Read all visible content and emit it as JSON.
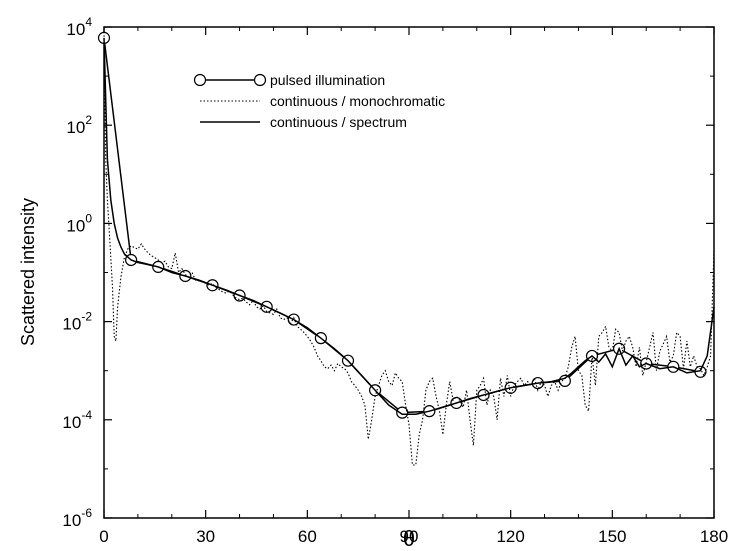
{
  "chart_data": {
    "type": "line",
    "title": "",
    "xlabel": "θ",
    "ylabel": "Scattered intensity",
    "xlim": [
      0,
      180
    ],
    "ylim": [
      1e-06,
      10000.0
    ],
    "yscale": "log",
    "x_ticks": [
      {
        "value": 0,
        "label": "0"
      },
      {
        "value": 30,
        "label": "30"
      },
      {
        "value": 60,
        "label": "60"
      },
      {
        "value": 90,
        "label": "90"
      },
      {
        "value": 120,
        "label": "120"
      },
      {
        "value": 150,
        "label": "150"
      },
      {
        "value": 180,
        "label": "180"
      }
    ],
    "y_ticks": [
      {
        "value": 1e-06,
        "base": "10",
        "exp": "-6"
      },
      {
        "value": 0.0001,
        "base": "10",
        "exp": "-4"
      },
      {
        "value": 0.01,
        "base": "10",
        "exp": "-2"
      },
      {
        "value": 1,
        "base": "10",
        "exp": "0"
      },
      {
        "value": 100,
        "base": "10",
        "exp": "2"
      },
      {
        "value": 10000,
        "base": "10",
        "exp": "4"
      }
    ],
    "grid": false,
    "legend_position": "top-center",
    "series": [
      {
        "name": "pulsed illumination",
        "style": "solid-with-circles",
        "color": "#000000",
        "x": [
          0,
          8,
          16,
          24,
          32,
          40,
          48,
          56,
          64,
          72,
          80,
          88,
          96,
          104,
          112,
          120,
          128,
          136,
          144,
          152,
          160,
          168,
          176
        ],
        "y": [
          6000,
          0.18,
          0.13,
          0.085,
          0.055,
          0.034,
          0.02,
          0.011,
          0.0046,
          0.0016,
          0.0004,
          0.00014,
          0.00015,
          0.00022,
          0.00032,
          0.00045,
          0.00056,
          0.00062,
          0.002,
          0.0028,
          0.0014,
          0.0012,
          0.00095
        ]
      },
      {
        "name": "continuous / monochromatic",
        "style": "dotted",
        "color": "#000000",
        "x": [
          0,
          0.5,
          1,
          1.5,
          2,
          2.5,
          3,
          3.5,
          4,
          5,
          6,
          7,
          8,
          9,
          10,
          11,
          12,
          13,
          14,
          15,
          16,
          17,
          18,
          19,
          20,
          21,
          22,
          23,
          24,
          25,
          26,
          27,
          28,
          29,
          30,
          31,
          32,
          33,
          34,
          35,
          36,
          37,
          38,
          39,
          40,
          41,
          42,
          43,
          44,
          45,
          46,
          47,
          48,
          49,
          50,
          51,
          52,
          53,
          54,
          55,
          56,
          57,
          58,
          59,
          60,
          61,
          62,
          63,
          64,
          65,
          66,
          67,
          68,
          69,
          70,
          71,
          72,
          73,
          74,
          75,
          76,
          77,
          78,
          79,
          80,
          81,
          82,
          83,
          84,
          85,
          86,
          87,
          88,
          89,
          90,
          91,
          92,
          93,
          94,
          95,
          96,
          97,
          98,
          99,
          100,
          101,
          102,
          103,
          104,
          105,
          106,
          107,
          108,
          109,
          110,
          111,
          112,
          113,
          114,
          115,
          116,
          117,
          118,
          119,
          120,
          121,
          122,
          123,
          124,
          125,
          126,
          127,
          128,
          129,
          130,
          131,
          132,
          133,
          134,
          135,
          136,
          137,
          138,
          139,
          140,
          141,
          142,
          143,
          144,
          145,
          146,
          147,
          148,
          149,
          150,
          151,
          152,
          153,
          154,
          155,
          156,
          157,
          158,
          159,
          160,
          161,
          162,
          163,
          164,
          165,
          166,
          167,
          168,
          169,
          170,
          171,
          172,
          173,
          174,
          175,
          176,
          177,
          178,
          179,
          180
        ],
        "y": [
          8000,
          20,
          3,
          0.8,
          0.2,
          0.05,
          0.005,
          0.004,
          0.02,
          0.08,
          0.2,
          0.3,
          0.35,
          0.32,
          0.3,
          0.38,
          0.3,
          0.25,
          0.22,
          0.2,
          0.18,
          0.16,
          0.17,
          0.13,
          0.12,
          0.25,
          0.1,
          0.12,
          0.09,
          0.08,
          0.1,
          0.07,
          0.068,
          0.065,
          0.06,
          0.055,
          0.06,
          0.05,
          0.045,
          0.04,
          0.038,
          0.042,
          0.035,
          0.03,
          0.028,
          0.03,
          0.025,
          0.022,
          0.027,
          0.02,
          0.018,
          0.021,
          0.016,
          0.015,
          0.014,
          0.018,
          0.012,
          0.011,
          0.012,
          0.009,
          0.012,
          0.008,
          0.007,
          0.006,
          0.005,
          0.004,
          0.003,
          0.002,
          0.0016,
          0.0012,
          0.0011,
          0.0013,
          0.001,
          0.0014,
          0.0012,
          0.0011,
          0.0009,
          0.0006,
          0.0005,
          0.0004,
          0.0003,
          0.0002,
          4e-05,
          0.0001,
          0.0003,
          0.0005,
          0.0008,
          0.001,
          0.0006,
          0.0005,
          0.0009,
          0.0007,
          0.0006,
          0.0002,
          8e-05,
          1.2e-05,
          1.2e-05,
          5e-05,
          0.0001,
          0.0004,
          0.0006,
          0.0007,
          0.0003,
          0.00015,
          5e-05,
          0.0002,
          0.0006,
          0.00025,
          0.0003,
          0.00025,
          0.00018,
          0.0004,
          0.0001,
          3e-05,
          0.0004,
          0.0005,
          0.0007,
          0.0002,
          0.0004,
          0.0003,
          0.0001,
          0.0007,
          0.0003,
          0.0008,
          0.0003,
          0.0005,
          0.0006,
          0.0007,
          0.0005,
          0.0006,
          0.0005,
          0.0007,
          0.0004,
          0.0006,
          0.0005,
          0.0003,
          0.0005,
          0.0006,
          0.0004,
          0.0006,
          0.0007,
          0.0012,
          0.003,
          0.005,
          0.001,
          0.0008,
          0.0002,
          0.00015,
          0.002,
          0.0005,
          0.005,
          0.006,
          0.008,
          0.003,
          0.0025,
          0.007,
          0.006,
          0.0025,
          0.004,
          0.005,
          0.003,
          0.0012,
          0.003,
          0.0008,
          0.0015,
          0.003,
          0.006,
          0.001,
          0.0025,
          0.0035,
          0.005,
          0.0015,
          0.002,
          0.006,
          0.005,
          0.0011,
          0.004,
          0.0012,
          0.002,
          0.0012,
          0.0011,
          0.0008,
          0.0012,
          0.002,
          0.3
        ]
      },
      {
        "name": "continuous / spectrum",
        "style": "solid",
        "color": "#000000",
        "x": [
          0,
          1,
          2,
          3,
          4,
          5,
          6,
          8,
          10,
          12,
          16,
          20,
          24,
          28,
          32,
          36,
          40,
          44,
          48,
          52,
          56,
          60,
          64,
          68,
          72,
          76,
          80,
          84,
          88,
          92,
          96,
          100,
          104,
          108,
          112,
          116,
          120,
          124,
          128,
          132,
          136,
          138,
          140,
          142,
          144,
          146,
          148,
          150,
          152,
          154,
          156,
          158,
          160,
          164,
          168,
          172,
          176,
          178,
          180
        ],
        "y": [
          6000,
          20,
          3,
          1.0,
          0.5,
          0.33,
          0.24,
          0.18,
          0.16,
          0.15,
          0.13,
          0.1,
          0.085,
          0.07,
          0.055,
          0.044,
          0.034,
          0.027,
          0.02,
          0.015,
          0.011,
          0.0075,
          0.0046,
          0.0028,
          0.0016,
          0.0008,
          0.0004,
          0.0002,
          0.00013,
          0.00013,
          0.00015,
          0.00018,
          0.00022,
          0.00027,
          0.00032,
          0.00038,
          0.00045,
          0.0005,
          0.00056,
          0.0006,
          0.0007,
          0.0009,
          0.0012,
          0.0016,
          0.002,
          0.0015,
          0.0022,
          0.0012,
          0.0028,
          0.0013,
          0.002,
          0.0012,
          0.0014,
          0.0011,
          0.0012,
          0.0009,
          0.001,
          0.002,
          0.02
        ]
      }
    ]
  }
}
